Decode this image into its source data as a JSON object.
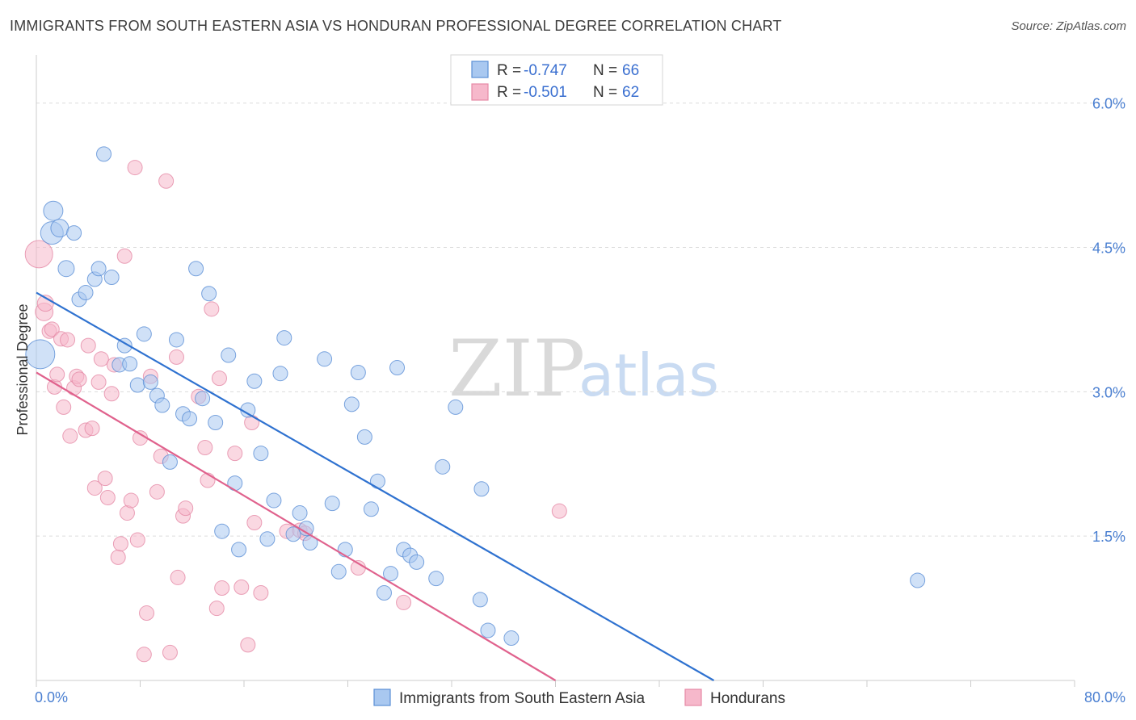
{
  "header": {
    "title": "IMMIGRANTS FROM SOUTH EASTERN ASIA VS HONDURAN PROFESSIONAL DEGREE CORRELATION CHART",
    "source": "Source: ZipAtlas.com"
  },
  "watermark": {
    "part1": "ZIP",
    "part2": "atlas"
  },
  "legend": {
    "r_label": "R =",
    "n_label": "N =",
    "rows": [
      {
        "r": "-0.747",
        "n": "66"
      },
      {
        "r": "-0.501",
        "n": "62"
      }
    ]
  },
  "colors": {
    "blue_fill": "#a9c8f0",
    "blue_stroke": "#5b8fd6",
    "blue_line": "#2f72d0",
    "pink_fill": "#f6b8cb",
    "pink_stroke": "#e58aa6",
    "pink_line": "#e0628d",
    "grid": "#dcdcdc",
    "axis_label": "#4a7fd1"
  },
  "chart_data": {
    "type": "scatter",
    "title": "IMMIGRANTS FROM SOUTH EASTERN ASIA VS HONDURAN PROFESSIONAL DEGREE CORRELATION CHART",
    "xlabel": "",
    "ylabel": "Professional Degree",
    "xlim": [
      0,
      80
    ],
    "ylim": [
      0,
      6.4
    ],
    "x_tick_labels": [
      "0.0%",
      "80.0%"
    ],
    "y_ticks": [
      1.5,
      3.0,
      4.5,
      6.0
    ],
    "y_tick_labels": [
      "1.5%",
      "3.0%",
      "4.5%",
      "6.0%"
    ],
    "grid": true,
    "legend_position": "top-center",
    "series": [
      {
        "name": "Immigrants from South Eastern Asia",
        "r": -0.747,
        "n": 66,
        "trend": {
          "x0": 0,
          "y0": 4.03,
          "x1": 52.2,
          "y1": 0
        },
        "points": [
          [
            0.3,
            3.39,
            36
          ],
          [
            1.2,
            4.65,
            28
          ],
          [
            1.3,
            4.88,
            24
          ],
          [
            1.8,
            4.7,
            22
          ],
          [
            2.9,
            4.65,
            18
          ],
          [
            2.3,
            4.28,
            20
          ],
          [
            3.3,
            3.96,
            18
          ],
          [
            3.8,
            4.03,
            18
          ],
          [
            4.5,
            4.17,
            18
          ],
          [
            4.8,
            4.28,
            18
          ],
          [
            5.2,
            5.47,
            18
          ],
          [
            5.8,
            4.19,
            18
          ],
          [
            6.4,
            3.28,
            18
          ],
          [
            6.8,
            3.48,
            18
          ],
          [
            7.2,
            3.29,
            18
          ],
          [
            7.8,
            3.07,
            18
          ],
          [
            8.3,
            3.6,
            18
          ],
          [
            8.8,
            3.1,
            18
          ],
          [
            9.3,
            2.96,
            18
          ],
          [
            9.7,
            2.86,
            18
          ],
          [
            10.3,
            2.27,
            18
          ],
          [
            10.8,
            3.54,
            18
          ],
          [
            11.3,
            2.77,
            18
          ],
          [
            11.8,
            2.72,
            18
          ],
          [
            12.3,
            4.28,
            18
          ],
          [
            12.8,
            2.93,
            18
          ],
          [
            13.3,
            4.02,
            18
          ],
          [
            13.8,
            2.68,
            18
          ],
          [
            14.3,
            1.55,
            18
          ],
          [
            14.8,
            3.38,
            18
          ],
          [
            15.3,
            2.05,
            18
          ],
          [
            15.6,
            1.36,
            18
          ],
          [
            16.3,
            2.81,
            18
          ],
          [
            16.8,
            3.11,
            18
          ],
          [
            17.3,
            2.36,
            18
          ],
          [
            17.8,
            1.47,
            18
          ],
          [
            18.3,
            1.87,
            18
          ],
          [
            18.8,
            3.19,
            18
          ],
          [
            19.1,
            3.56,
            18
          ],
          [
            19.8,
            1.52,
            18
          ],
          [
            20.3,
            1.74,
            18
          ],
          [
            20.8,
            1.58,
            18
          ],
          [
            21.1,
            1.43,
            18
          ],
          [
            22.2,
            3.34,
            18
          ],
          [
            22.8,
            1.84,
            18
          ],
          [
            23.3,
            1.13,
            18
          ],
          [
            23.8,
            1.36,
            18
          ],
          [
            24.3,
            2.87,
            18
          ],
          [
            24.8,
            3.2,
            18
          ],
          [
            25.3,
            2.53,
            18
          ],
          [
            25.8,
            1.78,
            18
          ],
          [
            26.3,
            2.07,
            18
          ],
          [
            26.8,
            0.91,
            18
          ],
          [
            27.3,
            1.11,
            18
          ],
          [
            27.8,
            3.25,
            18
          ],
          [
            28.3,
            1.36,
            18
          ],
          [
            28.8,
            1.3,
            18
          ],
          [
            29.3,
            1.23,
            18
          ],
          [
            30.8,
            1.06,
            18
          ],
          [
            31.3,
            2.22,
            18
          ],
          [
            32.3,
            2.84,
            18
          ],
          [
            34.2,
            0.84,
            18
          ],
          [
            34.3,
            1.99,
            18
          ],
          [
            34.8,
            0.52,
            18
          ],
          [
            36.6,
            0.44,
            18
          ],
          [
            67.9,
            1.04,
            18
          ]
        ]
      },
      {
        "name": "Hondurans",
        "r": -0.501,
        "n": 62,
        "trend": {
          "x0": 0,
          "y0": 3.2,
          "x1": 40,
          "y1": 0
        },
        "points": [
          [
            0.2,
            4.43,
            34
          ],
          [
            0.6,
            3.83,
            22
          ],
          [
            0.7,
            3.92,
            20
          ],
          [
            1.0,
            3.63,
            18
          ],
          [
            1.2,
            3.65,
            18
          ],
          [
            1.4,
            3.05,
            18
          ],
          [
            1.6,
            3.18,
            18
          ],
          [
            1.9,
            3.55,
            18
          ],
          [
            2.1,
            2.84,
            18
          ],
          [
            2.4,
            3.54,
            18
          ],
          [
            2.6,
            2.54,
            18
          ],
          [
            2.9,
            3.04,
            18
          ],
          [
            3.1,
            3.16,
            18
          ],
          [
            3.3,
            3.13,
            18
          ],
          [
            3.8,
            2.6,
            18
          ],
          [
            4.0,
            3.48,
            18
          ],
          [
            4.3,
            2.62,
            18
          ],
          [
            4.5,
            2.0,
            18
          ],
          [
            4.8,
            3.1,
            18
          ],
          [
            5.0,
            3.34,
            18
          ],
          [
            5.3,
            2.1,
            18
          ],
          [
            5.5,
            1.9,
            18
          ],
          [
            5.8,
            2.98,
            18
          ],
          [
            6.0,
            3.28,
            18
          ],
          [
            6.3,
            1.28,
            18
          ],
          [
            6.5,
            1.42,
            18
          ],
          [
            6.8,
            4.41,
            18
          ],
          [
            7.0,
            1.74,
            18
          ],
          [
            7.3,
            1.87,
            18
          ],
          [
            7.6,
            5.33,
            18
          ],
          [
            7.8,
            1.46,
            18
          ],
          [
            8.0,
            2.52,
            18
          ],
          [
            8.3,
            0.27,
            18
          ],
          [
            8.5,
            0.7,
            18
          ],
          [
            8.8,
            3.16,
            18
          ],
          [
            9.3,
            1.96,
            18
          ],
          [
            9.6,
            2.33,
            18
          ],
          [
            10.0,
            5.19,
            18
          ],
          [
            10.3,
            0.29,
            18
          ],
          [
            10.8,
            3.36,
            18
          ],
          [
            10.9,
            1.07,
            18
          ],
          [
            11.3,
            1.71,
            18
          ],
          [
            11.5,
            1.79,
            18
          ],
          [
            12.5,
            2.95,
            18
          ],
          [
            13.0,
            2.42,
            18
          ],
          [
            13.2,
            2.08,
            18
          ],
          [
            13.5,
            3.86,
            18
          ],
          [
            13.9,
            0.75,
            18
          ],
          [
            14.1,
            3.14,
            18
          ],
          [
            14.3,
            0.96,
            18
          ],
          [
            15.3,
            2.36,
            18
          ],
          [
            15.8,
            0.97,
            18
          ],
          [
            16.3,
            0.37,
            18
          ],
          [
            16.6,
            2.68,
            18
          ],
          [
            16.8,
            1.64,
            18
          ],
          [
            17.3,
            0.91,
            18
          ],
          [
            19.3,
            1.55,
            18
          ],
          [
            20.3,
            1.56,
            18
          ],
          [
            20.7,
            1.53,
            18
          ],
          [
            24.8,
            1.17,
            18
          ],
          [
            28.3,
            0.81,
            18
          ],
          [
            40.3,
            1.76,
            18
          ]
        ]
      }
    ]
  }
}
